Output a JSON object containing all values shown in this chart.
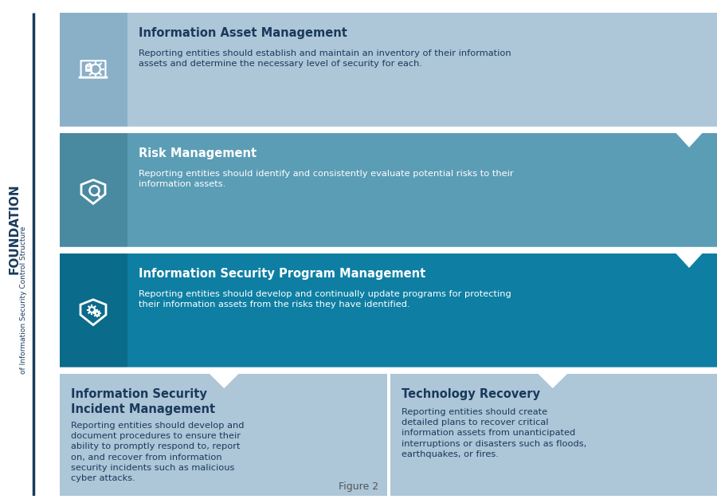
{
  "bg_color": "#ffffff",
  "sidebar_text": "FOUNDATION",
  "sidebar_subtext": "of Information Security Control Structure",
  "sidebar_line_color": "#1a3a5c",
  "sidebar_text_color": "#1a3a5c",
  "blocks": [
    {
      "title": "Information Asset Management",
      "body": "Reporting entities should establish and maintain an inventory of their information\nassets and determine the necessary level of security for each.",
      "bg_color": "#adc6d8",
      "icon_bg": "#8ab0c8",
      "arrow": true,
      "arrow_pos": "right",
      "row": 0,
      "col_span": 2
    },
    {
      "title": "Risk Management",
      "body": "Reporting entities should identify and consistently evaluate potential risks to their\ninformation assets.",
      "bg_color": "#5b9db5",
      "icon_bg": "#4a8aa0",
      "arrow": true,
      "arrow_pos": "right",
      "row": 1,
      "col_span": 2
    },
    {
      "title": "Information Security Program Management",
      "body": "Reporting entities should develop and continually update programs for protecting\ntheir information assets from the risks they have identified.",
      "bg_color": "#0e7fa3",
      "icon_bg": "#0a6b8a",
      "arrow": true,
      "arrow_pos": "both",
      "row": 2,
      "col_span": 2
    },
    {
      "title": "Information Security\nIncident Management",
      "body": "Reporting entities should develop and\ndocument procedures to ensure their\nability to promptly respond to, report\non, and recover from information\nsecurity incidents such as malicious\ncyber attacks.",
      "bg_color": "#adc6d8",
      "icon_bg": "#8ab0c8",
      "arrow": false,
      "row": 3,
      "col_span": 1
    },
    {
      "title": "Technology Recovery",
      "body": "Reporting entities should create\ndetailed plans to recover critical\ninformation assets from unanticipated\ninterruptions or disasters such as floods,\nearthquakes, or fires.",
      "bg_color": "#adc6d8",
      "icon_bg": "#8ab0c8",
      "arrow": false,
      "row": 3,
      "col_span": 1
    }
  ],
  "light_blue": "#adc6d8",
  "mid_blue": "#5b9db5",
  "dark_blue": "#0e7fa3",
  "icon_colors": [
    "#8ab0c8",
    "#4a8aa0",
    "#0a6b8a"
  ],
  "text_white": "#ffffff",
  "title_dark": "#1a3a5c",
  "figure_label": "Figure 2"
}
